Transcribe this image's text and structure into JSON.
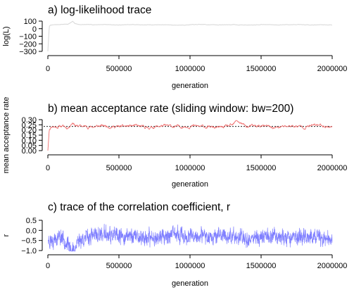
{
  "chart_data": [
    {
      "type": "line",
      "title": "a) log-likelihood trace",
      "xlabel": "generation",
      "ylabel": "log(L)",
      "xlim": [
        0,
        2000000
      ],
      "ylim": [
        -300,
        100
      ],
      "x_ticks": [
        0,
        500000,
        1000000,
        1500000,
        2000000
      ],
      "x_tick_labels": [
        "0",
        "500000",
        "1000000",
        "1500000",
        "2000000"
      ],
      "y_ticks": [
        -300,
        -200,
        -100,
        0,
        100
      ],
      "y_tick_labels": [
        "−300",
        "−200",
        "−100",
        "0",
        "100"
      ],
      "color": "#d9d9d9",
      "grid": false,
      "series": [
        {
          "x": [
            0,
            10000,
            20000,
            60000,
            100000,
            140000,
            160000,
            175000,
            190000,
            220000,
            300000,
            400000,
            500000,
            600000,
            700000,
            800000,
            900000,
            1000000,
            1100000,
            1200000,
            1300000,
            1400000,
            1500000,
            1600000,
            1700000,
            1800000,
            1900000,
            2000000
          ],
          "y": [
            -300,
            30,
            48,
            52,
            58,
            60,
            78,
            95,
            68,
            55,
            52,
            56,
            48,
            54,
            50,
            53,
            47,
            52,
            55,
            50,
            53,
            48,
            56,
            50,
            54,
            49,
            52,
            50
          ]
        }
      ]
    },
    {
      "type": "line",
      "title": "b) mean acceptance rate (sliding window: bw=200)",
      "xlabel": "generation",
      "ylabel": "mean acceptance rate",
      "xlim": [
        0,
        2000000
      ],
      "ylim": [
        0,
        0.3
      ],
      "x_ticks": [
        0,
        500000,
        1000000,
        1500000,
        2000000
      ],
      "x_tick_labels": [
        "0",
        "500000",
        "1000000",
        "1500000",
        "2000000"
      ],
      "y_ticks": [
        0,
        0.05,
        0.1,
        0.15,
        0.2,
        0.25,
        0.3
      ],
      "y_tick_labels": [
        "0.00",
        "0.05",
        "0.10",
        "0.15",
        "0.20",
        "0.25",
        "0.30"
      ],
      "reference_line": 0.234,
      "color": "#f07070",
      "grid": false,
      "series": [
        {
          "x": [
            0,
            4000,
            10000,
            30000,
            60000,
            100000,
            140000,
            175000,
            200000,
            300000,
            400000,
            500000,
            600000,
            700000,
            800000,
            900000,
            1000000,
            1100000,
            1200000,
            1300000,
            1330000,
            1400000,
            1500000,
            1600000,
            1700000,
            1800000,
            1900000,
            2000000
          ],
          "y": [
            0.0,
            0.08,
            0.21,
            0.24,
            0.23,
            0.24,
            0.22,
            0.28,
            0.24,
            0.23,
            0.24,
            0.23,
            0.24,
            0.22,
            0.24,
            0.23,
            0.24,
            0.23,
            0.22,
            0.24,
            0.29,
            0.23,
            0.24,
            0.22,
            0.24,
            0.23,
            0.25,
            0.23
          ]
        }
      ]
    },
    {
      "type": "line",
      "title": "c) trace of the correlation coefficient, r",
      "xlabel": "generation",
      "ylabel": "r",
      "xlim": [
        0,
        2000000
      ],
      "ylim": [
        -1.0,
        0.5
      ],
      "x_ticks": [
        0,
        500000,
        1000000,
        1500000,
        2000000
      ],
      "x_tick_labels": [
        "0",
        "500000",
        "1000000",
        "1500000",
        "2000000"
      ],
      "y_ticks": [
        -1.0,
        -0.5,
        0.0,
        0.5
      ],
      "y_tick_labels": [
        "−1.0",
        "−0.5",
        "0.0",
        "0.5"
      ],
      "color": "#7f7fff",
      "grid": false,
      "series": [
        {
          "x": [
            0,
            100000,
            150000,
            170000,
            190000,
            210000,
            300000,
            400000,
            500000,
            600000,
            700000,
            800000,
            900000,
            1000000,
            1100000,
            1200000,
            1300000,
            1400000,
            1500000,
            1600000,
            1700000,
            1800000,
            1900000,
            2000000
          ],
          "y": [
            -0.5,
            -0.3,
            -0.8,
            -1.0,
            -0.95,
            -0.5,
            -0.3,
            -0.2,
            -0.35,
            -0.25,
            -0.4,
            -0.3,
            -0.2,
            -0.35,
            -0.3,
            -0.25,
            -0.3,
            -0.4,
            -0.3,
            -0.25,
            -0.35,
            -0.3,
            -0.4,
            -0.5
          ]
        }
      ]
    }
  ]
}
